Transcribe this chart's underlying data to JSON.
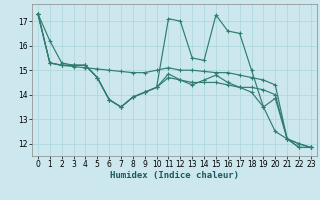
{
  "xlabel": "Humidex (Indice chaleur)",
  "bg_color": "#cce8ee",
  "grid_color": "#b0d8e0",
  "line_color": "#2e7d6e",
  "xlim": [
    -0.5,
    23.5
  ],
  "ylim": [
    11.5,
    17.7
  ],
  "xticks": [
    0,
    1,
    2,
    3,
    4,
    5,
    6,
    7,
    8,
    9,
    10,
    11,
    12,
    13,
    14,
    15,
    16,
    17,
    18,
    19,
    20,
    21,
    22,
    23
  ],
  "yticks": [
    12,
    13,
    14,
    15,
    16,
    17
  ],
  "series": [
    [
      17.3,
      16.2,
      15.3,
      15.2,
      15.2,
      14.7,
      13.8,
      13.5,
      13.9,
      14.1,
      14.3,
      14.7,
      14.6,
      14.5,
      14.5,
      14.5,
      14.4,
      14.3,
      14.3,
      14.2,
      14.0,
      12.2,
      12.0,
      11.85
    ],
    [
      17.3,
      15.3,
      15.2,
      15.15,
      15.1,
      15.05,
      15.0,
      14.95,
      14.9,
      14.9,
      15.0,
      15.1,
      15.0,
      15.0,
      14.95,
      14.9,
      14.9,
      14.8,
      14.7,
      14.6,
      14.4,
      12.2,
      12.0,
      11.85
    ],
    [
      17.3,
      15.3,
      15.2,
      15.2,
      15.2,
      14.7,
      13.8,
      13.5,
      13.9,
      14.1,
      14.3,
      17.1,
      17.0,
      15.5,
      15.4,
      17.25,
      16.6,
      16.5,
      15.0,
      13.5,
      13.85,
      12.2,
      11.85,
      11.85
    ],
    [
      17.3,
      15.3,
      15.2,
      15.2,
      15.2,
      14.7,
      13.8,
      13.5,
      13.9,
      14.1,
      14.3,
      14.85,
      14.6,
      14.4,
      14.6,
      14.8,
      14.5,
      14.3,
      14.1,
      13.5,
      12.5,
      12.2,
      11.85,
      11.85
    ]
  ]
}
